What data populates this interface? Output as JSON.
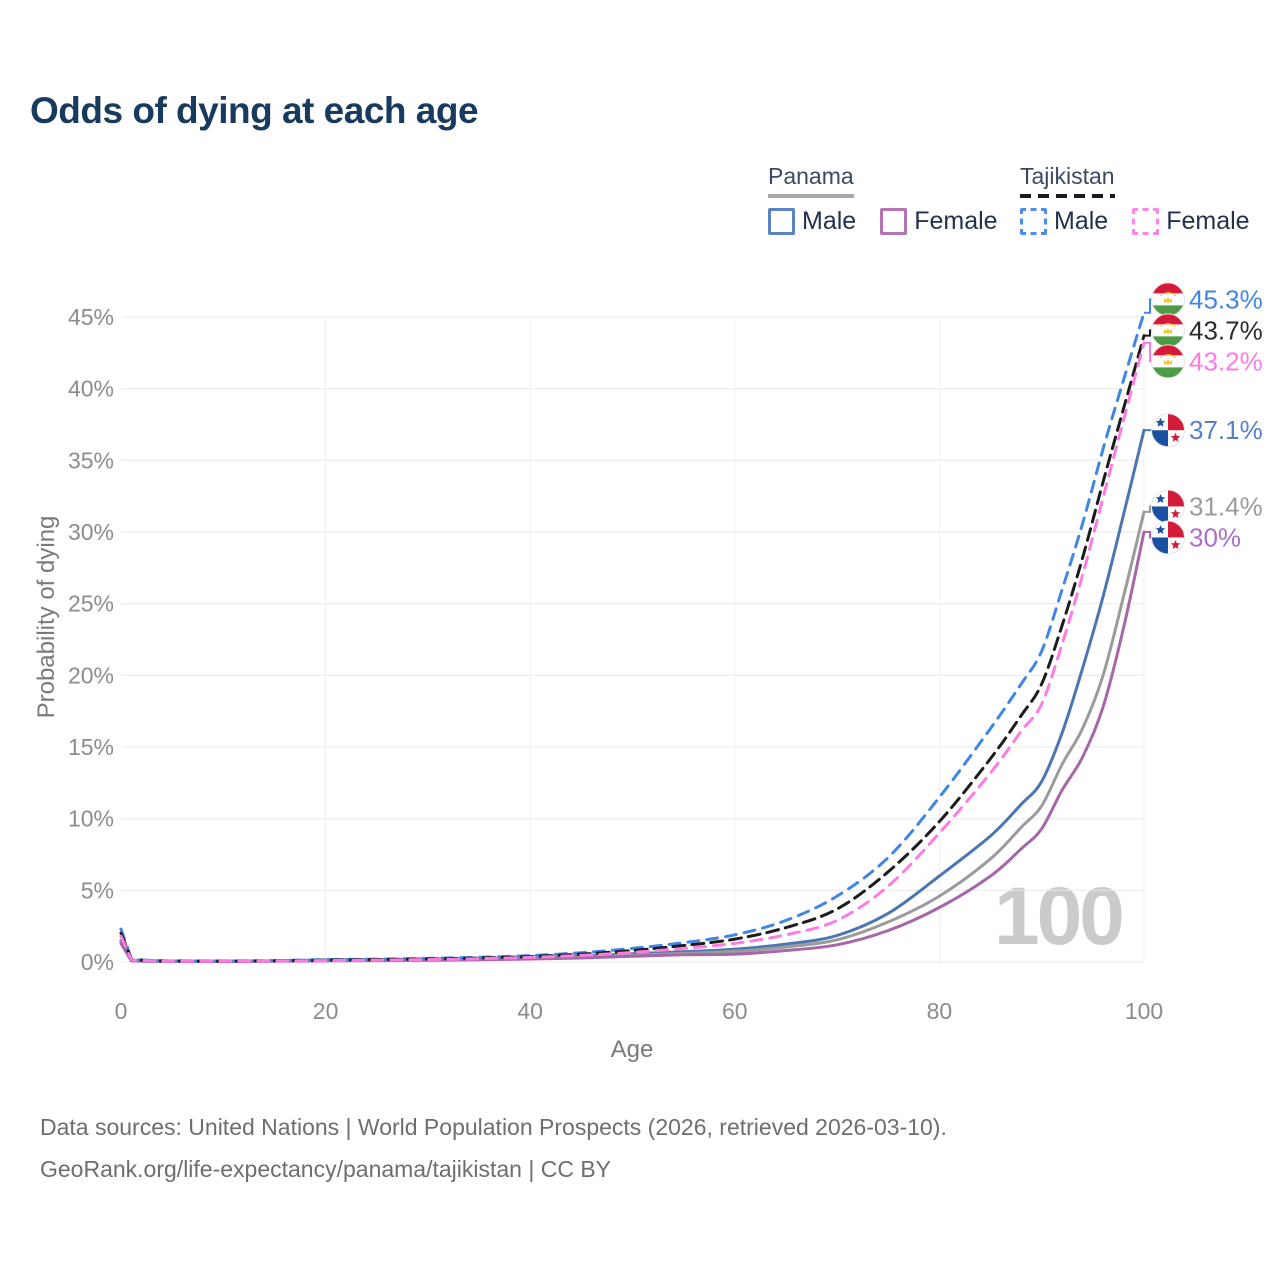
{
  "header": {
    "title": "Odds of dying at each age"
  },
  "legend": {
    "groups": [
      {
        "country": "Panama",
        "line_style": "solid",
        "underline_color": "#a8a8a8",
        "items": [
          {
            "label": "Male",
            "swatch_color": "#5b84c4"
          },
          {
            "label": "Female",
            "swatch_color": "#b573b3"
          }
        ]
      },
      {
        "country": "Tajikistan",
        "line_style": "dashed",
        "underline_color": "#1b1b1b",
        "items": [
          {
            "label": "Male",
            "swatch_color": "#4b8df0"
          },
          {
            "label": "Female",
            "swatch_color": "#ff85ec"
          }
        ]
      }
    ]
  },
  "chart_data": {
    "type": "line",
    "title": "Odds of dying at each age",
    "xlabel": "Age",
    "ylabel": "Probability of dying",
    "x_ticks": [
      0,
      20,
      40,
      60,
      80,
      100
    ],
    "y_ticks_percent": [
      0,
      5,
      10,
      15,
      20,
      25,
      30,
      35,
      40,
      45
    ],
    "xlim": [
      0,
      100
    ],
    "ylim_percent": [
      0,
      46.5
    ],
    "grid": "horizontal-light",
    "legend_position": "top-right",
    "watermark_age": "100",
    "ages": [
      0,
      1,
      2,
      3,
      5,
      10,
      15,
      20,
      25,
      30,
      35,
      40,
      45,
      50,
      55,
      60,
      65,
      70,
      75,
      80,
      85,
      88,
      90,
      92,
      94,
      96,
      98,
      100
    ],
    "series": [
      {
        "id": "tajikistan-male",
        "country": "Tajikistan",
        "sex": "Male",
        "color": "#4186e3",
        "dashed": true,
        "flag": "tajikistan",
        "end_label": "45.3%",
        "end_value_percent": 45.3,
        "label_color": "#4186e3",
        "values_percent": [
          2.3,
          0.25,
          0.15,
          0.11,
          0.08,
          0.07,
          0.1,
          0.16,
          0.2,
          0.25,
          0.33,
          0.45,
          0.65,
          0.95,
          1.35,
          1.9,
          2.9,
          4.6,
          7.3,
          11.5,
          16.3,
          19.4,
          21.7,
          26.0,
          30.6,
          35.8,
          40.6,
          45.3
        ]
      },
      {
        "id": "tajikistan-both",
        "country": "Tajikistan",
        "sex": "Both",
        "color": "#1c1c1c",
        "dashed": true,
        "flag": "tajikistan",
        "end_label": "43.7%",
        "end_value_percent": 43.7,
        "label_color": "#2b2b2b",
        "values_percent": [
          2.0,
          0.22,
          0.13,
          0.1,
          0.07,
          0.06,
          0.08,
          0.13,
          0.17,
          0.21,
          0.28,
          0.38,
          0.55,
          0.8,
          1.15,
          1.6,
          2.4,
          3.7,
          6.3,
          9.8,
          14.2,
          17.2,
          19.4,
          23.5,
          28.2,
          33.5,
          38.6,
          43.7
        ]
      },
      {
        "id": "tajikistan-female",
        "country": "Tajikistan",
        "sex": "Female",
        "color": "#fb7ce2",
        "dashed": true,
        "flag": "tajikistan",
        "end_label": "43.2%",
        "end_value_percent": 43.2,
        "label_color": "#fb7ce2",
        "values_percent": [
          1.8,
          0.2,
          0.12,
          0.09,
          0.06,
          0.05,
          0.07,
          0.1,
          0.13,
          0.17,
          0.23,
          0.32,
          0.46,
          0.67,
          0.95,
          1.3,
          1.9,
          2.9,
          5.3,
          9.0,
          13.2,
          16.1,
          18.0,
          22.2,
          27.0,
          32.4,
          37.8,
          43.2
        ]
      },
      {
        "id": "panama-male",
        "country": "Panama",
        "sex": "Male",
        "color": "#4c76b2",
        "dashed": false,
        "flag": "panama",
        "end_label": "37.1%",
        "end_value_percent": 37.1,
        "label_color": "#5580c8",
        "values_percent": [
          1.5,
          0.12,
          0.08,
          0.06,
          0.05,
          0.05,
          0.09,
          0.14,
          0.17,
          0.2,
          0.24,
          0.31,
          0.42,
          0.58,
          0.72,
          0.9,
          1.25,
          1.85,
          3.4,
          6.0,
          8.8,
          11.0,
          12.6,
          16.0,
          20.5,
          25.5,
          31.2,
          37.1
        ]
      },
      {
        "id": "panama-both",
        "country": "Panama",
        "sex": "Both",
        "color": "#9b9b9b",
        "dashed": false,
        "flag": "panama",
        "end_label": "31.4%",
        "end_value_percent": 31.4,
        "label_color": "#9b9b9b",
        "values_percent": [
          1.4,
          0.11,
          0.07,
          0.05,
          0.04,
          0.04,
          0.07,
          0.11,
          0.13,
          0.15,
          0.19,
          0.25,
          0.34,
          0.48,
          0.6,
          0.75,
          1.05,
          1.55,
          2.8,
          4.6,
          7.2,
          9.4,
          10.9,
          13.8,
          16.3,
          20.0,
          25.5,
          31.4
        ]
      },
      {
        "id": "panama-female",
        "country": "Panama",
        "sex": "Female",
        "color": "#a667a8",
        "dashed": false,
        "flag": "panama",
        "end_label": "30%",
        "end_value_percent": 30.0,
        "label_color": "#ad6fc4",
        "values_percent": [
          1.3,
          0.1,
          0.06,
          0.05,
          0.04,
          0.03,
          0.05,
          0.08,
          0.1,
          0.12,
          0.16,
          0.21,
          0.28,
          0.4,
          0.5,
          0.55,
          0.8,
          1.2,
          2.2,
          3.8,
          6.0,
          7.9,
          9.3,
          12.0,
          14.3,
          17.8,
          23.3,
          30.0
        ]
      }
    ],
    "flag_colors": {
      "tajikistan": {
        "red": "#d6193a",
        "white": "#ffffff",
        "green": "#4e9c45",
        "gold": "#f5c52c"
      },
      "panama": {
        "red": "#d31c3c",
        "blue": "#1a50a2",
        "white": "#ffffff"
      }
    },
    "gridline_color": "#e9e9e9",
    "tick_label_color": "#8c8c8c"
  },
  "footer": {
    "line1": "Data sources: United Nations | World Population Prospects (2026, retrieved 2026-03-10).",
    "line2": "GeoRank.org/life-expectancy/panama/tajikistan | CC BY"
  }
}
